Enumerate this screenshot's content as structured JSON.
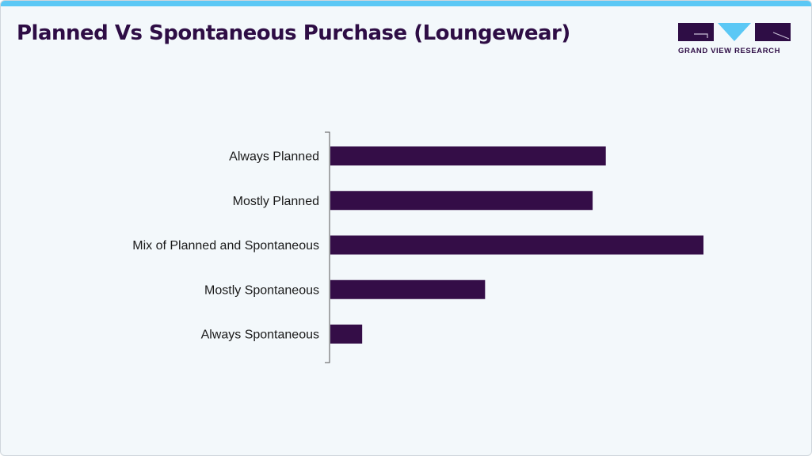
{
  "title": "Planned Vs Spontaneous Purchase (Loungewear)",
  "logo": {
    "text": "GRAND VIEW RESEARCH",
    "colors": {
      "dark": "#2e0d45",
      "accent": "#5bc8f5"
    }
  },
  "chart_data": {
    "type": "bar",
    "orientation": "horizontal",
    "title": "Planned Vs Spontaneous Purchase (Loungewear)",
    "categories": [
      "Always Planned",
      "Mostly Planned",
      "Mix of Planned and Spontaneous",
      "Mostly Spontaneous",
      "Always Spontaneous"
    ],
    "values": [
      25.1,
      23.9,
      34.0,
      14.1,
      2.9
    ],
    "xlabel": "",
    "ylabel": "",
    "xlim": [
      0,
      34.0
    ],
    "grid": false,
    "bar_color": "#340d47"
  }
}
